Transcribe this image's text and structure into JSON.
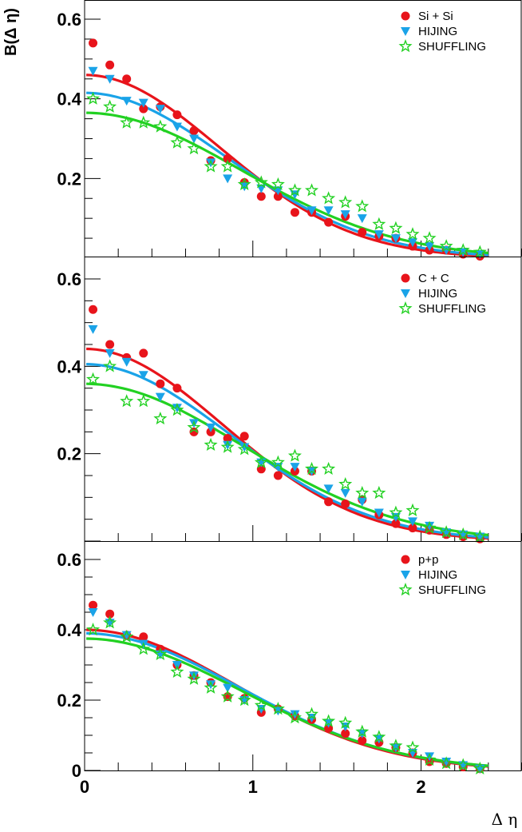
{
  "chart_data": {
    "type": "scatter",
    "title": "",
    "xlabel": "Δ η",
    "ylabel": "B(Δ η)",
    "xlim": [
      0,
      2.6
    ],
    "colors": {
      "data": "#e8141b",
      "hijing": "#1aa3e8",
      "shuffling": "#22d122"
    },
    "x_ticks": [
      "0",
      "1",
      "2"
    ],
    "panels": [
      {
        "name": "Si + Si",
        "ylim": [
          0.0,
          0.65
        ],
        "y_ticks": [
          "0.2",
          "0.4",
          "0.6"
        ],
        "legend": [
          "Si + Si",
          "HIJING",
          "SHUFFLING"
        ],
        "fits": [
          {
            "series": "data",
            "amp": 0.46,
            "sigma": 0.8
          },
          {
            "series": "hijing",
            "amp": 0.415,
            "sigma": 0.85
          },
          {
            "series": "shuffling",
            "amp": 0.365,
            "sigma": 0.93
          }
        ],
        "series": [
          {
            "name": "Si + Si",
            "key": "data",
            "marker": "circle",
            "x": [
              0.05,
              0.15,
              0.25,
              0.35,
              0.45,
              0.55,
              0.65,
              0.75,
              0.85,
              0.95,
              1.05,
              1.15,
              1.25,
              1.35,
              1.45,
              1.55,
              1.65,
              1.75,
              1.85,
              1.95,
              2.05,
              2.15,
              2.25,
              2.35
            ],
            "y": [
              0.54,
              0.485,
              0.45,
              0.375,
              0.38,
              0.36,
              0.32,
              0.245,
              0.25,
              0.19,
              0.155,
              0.155,
              0.115,
              0.115,
              0.09,
              0.105,
              0.065,
              0.055,
              0.05,
              0.03,
              0.02,
              0.02,
              0.01,
              0.005
            ]
          },
          {
            "name": "HIJING",
            "key": "hijing",
            "marker": "triangle",
            "x": [
              0.05,
              0.15,
              0.25,
              0.35,
              0.45,
              0.55,
              0.65,
              0.75,
              0.85,
              0.95,
              1.05,
              1.15,
              1.25,
              1.35,
              1.45,
              1.55,
              1.65,
              1.75,
              1.85,
              1.95,
              2.05,
              2.15,
              2.25,
              2.35
            ],
            "y": [
              0.47,
              0.45,
              0.395,
              0.39,
              0.375,
              0.33,
              0.3,
              0.24,
              0.2,
              0.18,
              0.175,
              0.17,
              0.16,
              0.12,
              0.12,
              0.11,
              0.1,
              0.06,
              0.05,
              0.04,
              0.03,
              0.02,
              0.015,
              0.01
            ]
          },
          {
            "name": "SHUFFLING",
            "key": "shuffling",
            "marker": "star",
            "x": [
              0.05,
              0.15,
              0.25,
              0.35,
              0.45,
              0.55,
              0.65,
              0.75,
              0.85,
              0.95,
              1.05,
              1.15,
              1.25,
              1.35,
              1.45,
              1.55,
              1.65,
              1.75,
              1.85,
              1.95,
              2.05,
              2.15,
              2.25,
              2.35
            ],
            "y": [
              0.4,
              0.38,
              0.34,
              0.34,
              0.33,
              0.29,
              0.275,
              0.23,
              0.23,
              0.185,
              0.19,
              0.185,
              0.17,
              0.17,
              0.15,
              0.14,
              0.13,
              0.085,
              0.075,
              0.06,
              0.05,
              0.03,
              0.02,
              0.015
            ]
          }
        ]
      },
      {
        "name": "C + C",
        "ylim": [
          0.0,
          0.67
        ],
        "y_ticks": [
          "0.2",
          "0.4",
          "0.6"
        ],
        "legend": [
          "C + C",
          "HIJING",
          "SHUFFLING"
        ],
        "fits": [
          {
            "series": "data",
            "amp": 0.44,
            "sigma": 0.82
          },
          {
            "series": "hijing",
            "amp": 0.405,
            "sigma": 0.86
          },
          {
            "series": "shuffling",
            "amp": 0.36,
            "sigma": 0.94
          }
        ],
        "series": [
          {
            "name": "C + C",
            "key": "data",
            "marker": "circle",
            "x": [
              0.05,
              0.15,
              0.25,
              0.35,
              0.45,
              0.55,
              0.65,
              0.75,
              0.85,
              0.95,
              1.05,
              1.15,
              1.25,
              1.35,
              1.45,
              1.55,
              1.65,
              1.75,
              1.85,
              1.95,
              2.05,
              2.15,
              2.25,
              2.35
            ],
            "y": [
              0.53,
              0.45,
              0.42,
              0.43,
              0.36,
              0.35,
              0.25,
              0.25,
              0.235,
              0.24,
              0.165,
              0.15,
              0.16,
              0.16,
              0.09,
              0.085,
              0.095,
              0.06,
              0.04,
              0.03,
              0.025,
              0.015,
              0.01,
              0.005
            ]
          },
          {
            "name": "HIJING",
            "key": "hijing",
            "marker": "triangle",
            "x": [
              0.05,
              0.15,
              0.25,
              0.35,
              0.45,
              0.55,
              0.65,
              0.75,
              0.85,
              0.95,
              1.05,
              1.15,
              1.25,
              1.35,
              1.45,
              1.55,
              1.65,
              1.75,
              1.85,
              1.95,
              2.05,
              2.15,
              2.25,
              2.35
            ],
            "y": [
              0.485,
              0.43,
              0.41,
              0.38,
              0.33,
              0.305,
              0.27,
              0.26,
              0.22,
              0.215,
              0.18,
              0.17,
              0.17,
              0.16,
              0.12,
              0.11,
              0.09,
              0.065,
              0.055,
              0.045,
              0.035,
              0.02,
              0.015,
              0.01
            ]
          },
          {
            "name": "SHUFFLING",
            "key": "shuffling",
            "marker": "star",
            "x": [
              0.05,
              0.15,
              0.25,
              0.35,
              0.45,
              0.55,
              0.65,
              0.75,
              0.85,
              0.95,
              1.05,
              1.15,
              1.25,
              1.35,
              1.45,
              1.55,
              1.65,
              1.75,
              1.85,
              1.95,
              2.05,
              2.15,
              2.25,
              2.35
            ],
            "y": [
              0.37,
              0.4,
              0.32,
              0.32,
              0.28,
              0.3,
              0.26,
              0.22,
              0.215,
              0.21,
              0.18,
              0.18,
              0.195,
              0.165,
              0.165,
              0.13,
              0.11,
              0.11,
              0.065,
              0.07,
              0.03,
              0.02,
              0.015,
              0.01
            ]
          }
        ]
      },
      {
        "name": "p+p",
        "ylim": [
          0.0,
          0.67
        ],
        "y_ticks": [
          "0",
          "0.2",
          "0.4",
          "0.6"
        ],
        "legend": [
          "p+p",
          "HIJING",
          "SHUFFLING"
        ],
        "fits": [
          {
            "series": "data",
            "amp": 0.4,
            "sigma": 0.9
          },
          {
            "series": "hijing",
            "amp": 0.39,
            "sigma": 0.92
          },
          {
            "series": "shuffling",
            "amp": 0.375,
            "sigma": 0.93
          }
        ],
        "series": [
          {
            "name": "p+p",
            "key": "data",
            "marker": "circle",
            "x": [
              0.05,
              0.15,
              0.25,
              0.35,
              0.45,
              0.55,
              0.65,
              0.75,
              0.85,
              0.95,
              1.05,
              1.15,
              1.25,
              1.35,
              1.45,
              1.55,
              1.65,
              1.75,
              1.85,
              1.95,
              2.05,
              2.15,
              2.25,
              2.35
            ],
            "y": [
              0.47,
              0.445,
              0.385,
              0.38,
              0.345,
              0.3,
              0.27,
              0.25,
              0.21,
              0.205,
              0.165,
              0.175,
              0.155,
              0.145,
              0.12,
              0.105,
              0.085,
              0.08,
              0.065,
              0.05,
              0.025,
              0.02,
              0.01,
              0.005
            ]
          },
          {
            "name": "HIJING",
            "key": "hijing",
            "marker": "triangle",
            "x": [
              0.05,
              0.15,
              0.25,
              0.35,
              0.45,
              0.55,
              0.65,
              0.75,
              0.85,
              0.95,
              1.05,
              1.15,
              1.25,
              1.35,
              1.45,
              1.55,
              1.65,
              1.75,
              1.85,
              1.95,
              2.05,
              2.15,
              2.25,
              2.35
            ],
            "y": [
              0.45,
              0.42,
              0.385,
              0.36,
              0.33,
              0.3,
              0.27,
              0.245,
              0.235,
              0.2,
              0.175,
              0.17,
              0.16,
              0.15,
              0.135,
              0.125,
              0.105,
              0.09,
              0.065,
              0.05,
              0.04,
              0.025,
              0.015,
              0.005
            ]
          },
          {
            "name": "SHUFFLING",
            "key": "shuffling",
            "marker": "star",
            "x": [
              0.05,
              0.15,
              0.25,
              0.35,
              0.45,
              0.55,
              0.65,
              0.75,
              0.85,
              0.95,
              1.05,
              1.15,
              1.25,
              1.35,
              1.45,
              1.55,
              1.65,
              1.75,
              1.85,
              1.95,
              2.05,
              2.15,
              2.25,
              2.35
            ],
            "y": [
              0.4,
              0.42,
              0.38,
              0.345,
              0.33,
              0.28,
              0.26,
              0.235,
              0.21,
              0.2,
              0.185,
              0.175,
              0.15,
              0.16,
              0.14,
              0.135,
              0.11,
              0.095,
              0.07,
              0.065,
              0.03,
              0.02,
              0.015,
              0.005
            ]
          }
        ]
      }
    ]
  }
}
